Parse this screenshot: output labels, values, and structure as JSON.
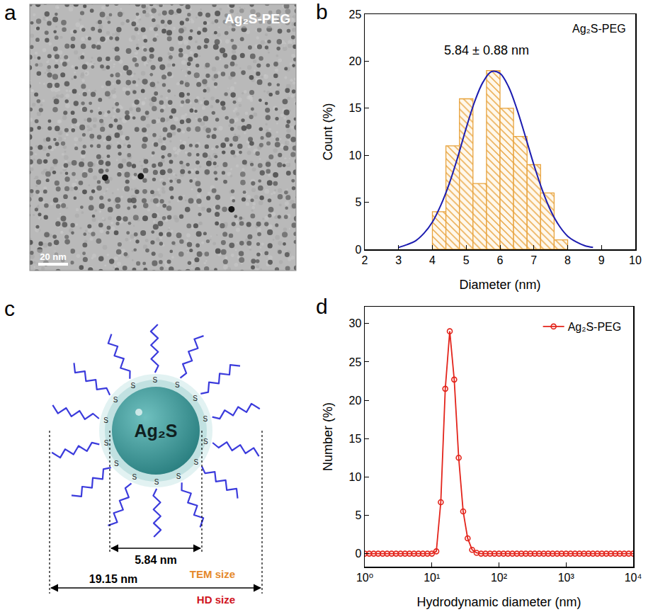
{
  "panel_labels": [
    "a",
    "b",
    "c",
    "d"
  ],
  "image": {
    "label": "Ag₂S-PEG",
    "scale_bar": "20 nm"
  },
  "diagram": {
    "core_label": "Ag₂S",
    "ligand_atom": "S",
    "tem_size": "5.84 nm",
    "tem_label": "TEM size",
    "hd_size": "19.15 nm",
    "hd_label": "HD size"
  },
  "chart_data": [
    {
      "type": "histogram",
      "label": "Ag₂S-PEG",
      "annotation": "5.84 ± 0.88 nm",
      "x_label": "Diameter (nm)",
      "y_label": "Count (%)",
      "bins": [
        4.0,
        4.4,
        4.8,
        5.2,
        5.6,
        6.0,
        6.4,
        6.8,
        7.2,
        7.6,
        8.0
      ],
      "values": [
        4,
        11,
        16,
        7,
        19,
        15,
        12,
        9,
        6,
        1
      ],
      "color": "#e8a33d",
      "fit": {
        "type": "line",
        "color": "#1c1cb0",
        "x": [
          3.0,
          3.25,
          3.5,
          3.75,
          4.0,
          4.25,
          4.5,
          4.75,
          5.0,
          5.25,
          5.5,
          5.75,
          6.0,
          6.25,
          6.5,
          6.75,
          7.0,
          7.25,
          7.5,
          7.75,
          8.0,
          8.25,
          8.5,
          8.75
        ],
        "values": [
          0.2,
          0.5,
          0.9,
          1.7,
          2.9,
          4.7,
          7.0,
          9.8,
          12.9,
          15.7,
          17.8,
          18.9,
          18.7,
          17.3,
          14.9,
          12.0,
          9.0,
          6.3,
          4.1,
          2.5,
          1.4,
          0.8,
          0.4,
          0.2
        ]
      },
      "xlim": [
        2,
        10
      ],
      "xticks": [
        2,
        3,
        4,
        5,
        6,
        7,
        8,
        9,
        10
      ],
      "ylim": [
        0,
        25
      ],
      "yticks": [
        0,
        5,
        10,
        15,
        20,
        25
      ],
      "grid": false
    },
    {
      "type": "line",
      "marker": "circle-open",
      "log": "x",
      "x_label": "Hydrodynamic diameter (nm)",
      "y_label": "Number (%)",
      "x": [
        1,
        1.166,
        1.359,
        1.585,
        1.848,
        2.154,
        2.512,
        2.929,
        3.415,
        3.981,
        4.642,
        5.412,
        6.31,
        7.356,
        8.577,
        10,
        11.66,
        13.59,
        15.85,
        18.48,
        21.54,
        25.12,
        29.29,
        34.15,
        39.81,
        46.42,
        54.12,
        63.1,
        73.56,
        85.77,
        100,
        116.6,
        135.9,
        158.5,
        184.8,
        215.4,
        251.2,
        292.9,
        341.5,
        398.1,
        464.2,
        541.2,
        631,
        735.6,
        857.7,
        1000,
        1166,
        1359,
        1585,
        1848,
        2154,
        2512,
        2929,
        3415,
        3981,
        4642,
        5412,
        6310,
        7356,
        8577,
        10000
      ],
      "series": [
        {
          "name": "Ag₂S-PEG",
          "color": "#e3241b",
          "values": [
            0,
            0,
            0,
            0,
            0,
            0,
            0,
            0,
            0,
            0,
            0,
            0,
            0,
            0,
            0,
            0,
            0.3,
            6.7,
            21.5,
            29,
            22.7,
            12.5,
            5.5,
            2,
            0.5,
            0.1,
            0,
            0,
            0,
            0,
            0,
            0,
            0,
            0,
            0,
            0,
            0,
            0,
            0,
            0,
            0,
            0,
            0,
            0,
            0,
            0,
            0,
            0,
            0,
            0,
            0,
            0,
            0,
            0,
            0,
            0,
            0,
            0,
            0,
            0,
            0
          ]
        }
      ],
      "xlim": [
        1,
        10000
      ],
      "xticks": [
        {
          "value": 1,
          "label": "10⁰"
        },
        {
          "value": 10,
          "label": "10¹"
        },
        {
          "value": 100,
          "label": "10²"
        },
        {
          "value": 1000,
          "label": "10³"
        },
        {
          "value": 10000,
          "label": "10⁴"
        }
      ],
      "ylim": [
        -1.7,
        32.2
      ],
      "yticks": [
        0,
        5,
        10,
        15,
        20,
        25,
        30
      ],
      "legend": "top-right",
      "grid": false
    }
  ]
}
